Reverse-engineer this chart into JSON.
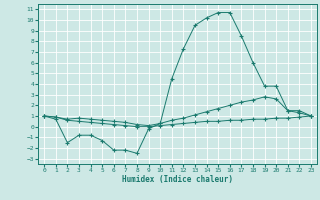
{
  "title": "",
  "xlabel": "Humidex (Indice chaleur)",
  "xlim": [
    -0.5,
    23.5
  ],
  "ylim": [
    -3.5,
    11.5
  ],
  "xticks": [
    0,
    1,
    2,
    3,
    4,
    5,
    6,
    7,
    8,
    9,
    10,
    11,
    12,
    13,
    14,
    15,
    16,
    17,
    18,
    19,
    20,
    21,
    22,
    23
  ],
  "yticks": [
    -3,
    -2,
    -1,
    0,
    1,
    2,
    3,
    4,
    5,
    6,
    7,
    8,
    9,
    10,
    11
  ],
  "bg_color": "#cde8e5",
  "line_color": "#1a7a6e",
  "grid_color": "#ffffff",
  "curve1_x": [
    0,
    1,
    2,
    3,
    4,
    5,
    6,
    7,
    8,
    9,
    10,
    11,
    12,
    13,
    14,
    15,
    16,
    17,
    18,
    19,
    20,
    21,
    22,
    23
  ],
  "curve1_y": [
    1.0,
    0.7,
    -1.5,
    -0.8,
    -0.8,
    -1.3,
    -2.2,
    -2.2,
    -2.5,
    -0.2,
    0.3,
    4.5,
    7.3,
    9.5,
    10.2,
    10.7,
    10.7,
    8.5,
    6.0,
    3.8,
    3.8,
    1.5,
    1.3,
    1.0
  ],
  "curve2_x": [
    0,
    1,
    2,
    3,
    4,
    5,
    6,
    7,
    8,
    9,
    10,
    11,
    12,
    13,
    14,
    15,
    16,
    17,
    18,
    19,
    20,
    21,
    22,
    23
  ],
  "curve2_y": [
    1.0,
    0.9,
    0.7,
    0.8,
    0.7,
    0.6,
    0.5,
    0.4,
    0.2,
    0.1,
    0.3,
    0.6,
    0.8,
    1.1,
    1.4,
    1.7,
    2.0,
    2.3,
    2.5,
    2.8,
    2.6,
    1.5,
    1.5,
    1.0
  ],
  "curve3_x": [
    0,
    1,
    2,
    3,
    4,
    5,
    6,
    7,
    8,
    9,
    10,
    11,
    12,
    13,
    14,
    15,
    16,
    17,
    18,
    19,
    20,
    21,
    22,
    23
  ],
  "curve3_y": [
    1.0,
    0.9,
    0.6,
    0.5,
    0.4,
    0.3,
    0.2,
    0.1,
    0.0,
    0.0,
    0.1,
    0.2,
    0.3,
    0.4,
    0.5,
    0.5,
    0.6,
    0.6,
    0.7,
    0.7,
    0.8,
    0.8,
    0.9,
    1.0
  ]
}
